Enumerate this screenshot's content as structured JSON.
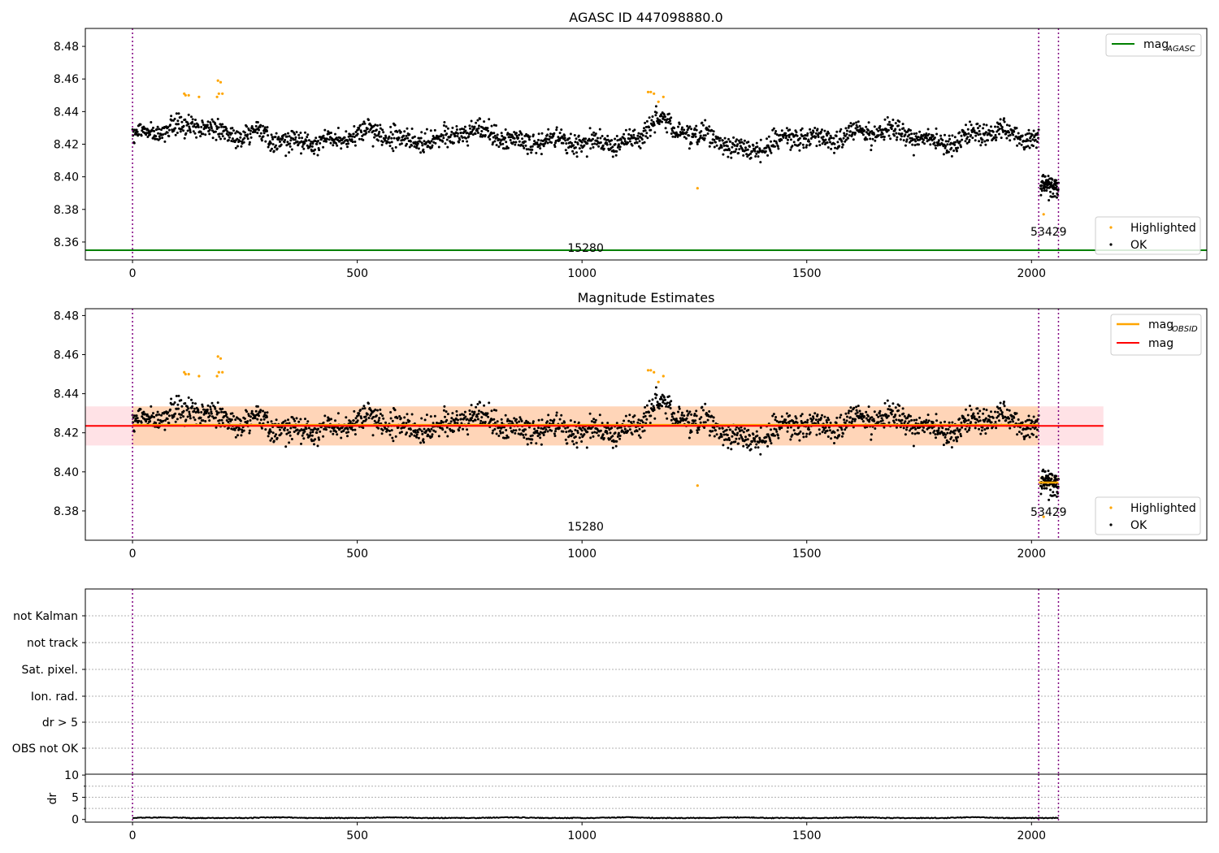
{
  "chart_data": [
    {
      "type": "scatter",
      "title": "AGASC ID 447098880.0",
      "xlabel": "",
      "ylabel": "",
      "xlim": [
        -105,
        2390
      ],
      "ylim": [
        8.349,
        8.491
      ],
      "xticks": [
        0,
        500,
        1000,
        1500,
        2000
      ],
      "yticks": [
        8.36,
        8.38,
        8.4,
        8.42,
        8.44,
        8.46,
        8.48
      ],
      "ytick_labels": [
        "8.36",
        "8.38",
        "8.40",
        "8.42",
        "8.44",
        "8.46",
        "8.48"
      ],
      "reference_line": {
        "name": "mag",
        "subscript": "AGASC",
        "y": 8.355,
        "color": "#008000"
      },
      "obs_boundaries": [
        0,
        2016,
        2060
      ],
      "obs_labels": [
        {
          "text": "15280",
          "x": 1008,
          "y": 8.354
        },
        {
          "text": "53429",
          "x": 2038,
          "y": 8.364
        }
      ],
      "series": [
        {
          "name": "Highlighted",
          "color": "#ffa500",
          "points": [
            [
              115,
              8.451
            ],
            [
              118,
              8.45
            ],
            [
              125,
              8.45
            ],
            [
              148,
              8.449
            ],
            [
              190,
              8.459
            ],
            [
              196,
              8.458
            ],
            [
              192,
              8.451
            ],
            [
              200,
              8.451
            ],
            [
              188,
              8.449
            ],
            [
              1147,
              8.452
            ],
            [
              1153,
              8.452
            ],
            [
              1160,
              8.451
            ],
            [
              1170,
              8.446
            ],
            [
              1181,
              8.449
            ],
            [
              1257,
              8.393
            ],
            [
              2027,
              8.377
            ]
          ]
        },
        {
          "name": "OK",
          "color": "#000000",
          "generated": "dense noisy light curve, about 2100 samples"
        }
      ],
      "legend": {
        "upper_right": [
          "mag_AGASC"
        ],
        "lower_right": [
          "Highlighted",
          "OK"
        ]
      }
    },
    {
      "type": "scatter",
      "title": "Magnitude Estimates",
      "xlabel": "",
      "ylabel": "",
      "xlim": [
        -105,
        2390
      ],
      "ylim": [
        8.365,
        8.4835
      ],
      "xticks": [
        0,
        500,
        1000,
        1500,
        2000
      ],
      "yticks": [
        8.38,
        8.4,
        8.42,
        8.44,
        8.46,
        8.48
      ],
      "ytick_labels": [
        "8.38",
        "8.40",
        "8.42",
        "8.44",
        "8.46",
        "8.48"
      ],
      "mean_line": {
        "name": "mag",
        "y": 8.4235,
        "x_range": [
          -105,
          2160
        ],
        "band": [
          8.4135,
          8.4335
        ],
        "color": "#ff0000"
      },
      "obsid_lines": [
        {
          "name": "mag",
          "subscript": "OBSID",
          "y": 8.424,
          "x_range": [
            0,
            2016
          ],
          "band": [
            8.4135,
            8.4335
          ],
          "color": "#ffa500"
        },
        {
          "y": 8.3945,
          "x_range": [
            2016,
            2060
          ],
          "band": [
            8.392,
            8.398
          ],
          "color": "#ffa500"
        }
      ],
      "obs_boundaries": [
        0,
        2016,
        2060
      ],
      "obs_labels": [
        {
          "text": "15280",
          "x": 1008,
          "y": 8.37
        },
        {
          "text": "53429",
          "x": 2038,
          "y": 8.3775
        }
      ],
      "legend": {
        "upper_right": [
          "mag_OBSID",
          "mag"
        ],
        "lower_right": [
          "Highlighted",
          "OK"
        ]
      }
    },
    {
      "type": "table",
      "title": "",
      "flag_rows": [
        "not Kalman",
        "not track",
        "Sat. pixel.",
        "Ion. rad.",
        "dr > 5",
        "OBS not OK"
      ],
      "xlim": [
        -105,
        2390
      ],
      "obs_boundaries": [
        0,
        2016,
        2060
      ]
    },
    {
      "type": "line",
      "title": "",
      "xlabel": "",
      "ylabel": "dr",
      "xlim": [
        -105,
        2390
      ],
      "ylim": [
        -0.6,
        10.2
      ],
      "xticks": [
        0,
        500,
        1000,
        1500,
        2000
      ],
      "yticks": [
        0,
        5,
        10
      ],
      "ytick_labels": [
        "0",
        "5",
        "10"
      ],
      "series": [
        {
          "color": "#000000",
          "generated": "dr values around 0.2–0.6"
        }
      ],
      "obs_boundaries": [
        0,
        2016,
        2060
      ]
    }
  ],
  "colors": {
    "ok": "#000000",
    "highlighted": "#ffa500",
    "agasc": "#008000",
    "mag": "#ff0000",
    "obsid": "#ffa500",
    "boundary": "#800080"
  },
  "legend_text": {
    "highlighted": "Highlighted",
    "ok": "OK",
    "mag": "mag",
    "agasc_sub": "AGASC",
    "obsid_sub": "OBSID"
  }
}
